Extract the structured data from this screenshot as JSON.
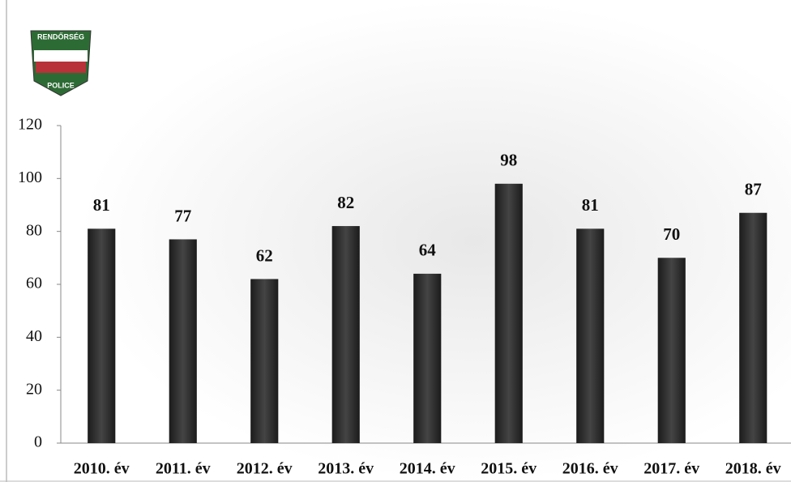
{
  "chart_data": {
    "type": "bar",
    "annotations": [
      "RENDŐRSÉG",
      "POLICE"
    ],
    "categories": [
      "2010. év",
      "2011. év",
      "2012. év",
      "2013. év",
      "2014. év",
      "2015. év",
      "2016. év",
      "2017. év",
      "2018. év"
    ],
    "values": [
      81,
      77,
      62,
      82,
      64,
      98,
      81,
      70,
      87
    ],
    "color": "#2b2b2b",
    "ylim": [
      0,
      120
    ],
    "yticks": [
      0,
      20,
      40,
      60,
      80,
      100,
      120
    ]
  }
}
